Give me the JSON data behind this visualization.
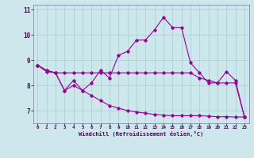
{
  "xlabel": "Windchill (Refroidissement éolien,°C)",
  "background_color": "#cce8ec",
  "grid_color": "#aacccc",
  "line_color": "#990099",
  "hours": [
    0,
    1,
    2,
    3,
    4,
    5,
    6,
    7,
    8,
    9,
    10,
    11,
    12,
    13,
    14,
    15,
    16,
    17,
    18,
    19,
    20,
    21,
    22,
    23
  ],
  "line1": [
    8.8,
    8.6,
    8.5,
    7.8,
    8.2,
    7.8,
    8.1,
    8.6,
    8.3,
    9.2,
    9.35,
    9.8,
    9.8,
    10.2,
    10.7,
    10.3,
    10.3,
    8.9,
    8.5,
    8.1,
    8.1,
    8.55,
    8.2,
    6.75
  ],
  "line2": [
    8.8,
    8.6,
    8.5,
    8.5,
    8.5,
    8.5,
    8.5,
    8.5,
    8.5,
    8.5,
    8.5,
    8.5,
    8.5,
    8.5,
    8.5,
    8.5,
    8.5,
    8.5,
    8.3,
    8.2,
    8.1,
    8.1,
    8.1,
    6.75
  ],
  "line3": [
    8.8,
    8.55,
    8.5,
    7.8,
    8.0,
    7.8,
    7.6,
    7.4,
    7.2,
    7.1,
    7.0,
    6.95,
    6.9,
    6.85,
    6.82,
    6.8,
    6.8,
    6.8,
    6.8,
    6.78,
    6.76,
    6.76,
    6.75,
    6.75
  ],
  "ylim": [
    6.5,
    11.2
  ],
  "yticks": [
    7,
    8,
    9,
    10,
    11
  ],
  "xlim": [
    -0.5,
    23.5
  ]
}
